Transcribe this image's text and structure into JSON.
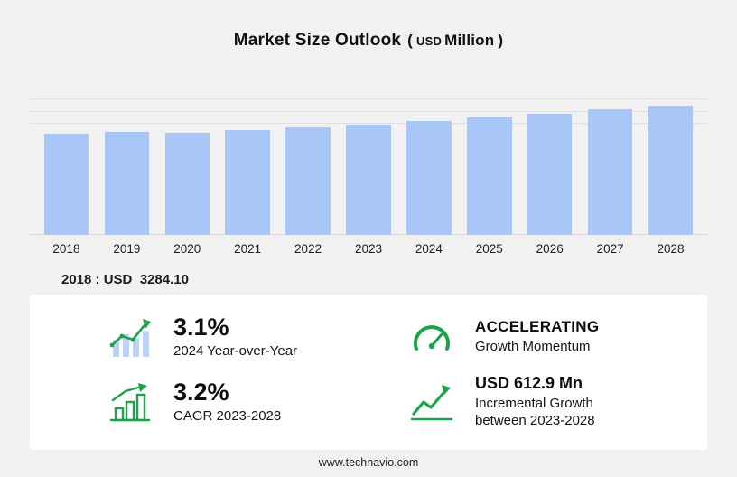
{
  "title": {
    "main": "Market Size Outlook",
    "open": "(",
    "currency": "USD",
    "unit": "Million",
    "close": ")"
  },
  "chart_data": {
    "type": "bar",
    "title": "Market Size Outlook (USD Million)",
    "categories": [
      "2018",
      "2019",
      "2020",
      "2021",
      "2022",
      "2023",
      "2024",
      "2025",
      "2026",
      "2027",
      "2028"
    ],
    "values": [
      3284.1,
      3352,
      3318,
      3390,
      3480,
      3590.9,
      3702.2,
      3820,
      3943,
      4070,
      4203.8
    ],
    "xlabel": "",
    "ylabel": "",
    "ylim": [
      0,
      4400
    ],
    "grid": true,
    "grid_values": [
      3600,
      4000,
      4400
    ],
    "bar_color": "#A8C7F8",
    "legend": "none"
  },
  "annotation": {
    "base_year_value": "2018 : USD  3284.10"
  },
  "stats": {
    "yoy": {
      "icon": "bar-chart-trend-icon",
      "value": "3.1%",
      "label": "2024 Year-over-Year"
    },
    "momentum": {
      "icon": "gauge-icon",
      "value": "ACCELERATING",
      "label": "Growth Momentum"
    },
    "cagr": {
      "icon": "growth-bars-icon",
      "value": "3.2%",
      "label": "CAGR 2023-2028"
    },
    "incremental": {
      "icon": "growth-arrow-icon",
      "value": "USD 612.9 Mn",
      "label_line1": "Incremental Growth",
      "label_line2": "between 2023-2028"
    }
  },
  "footer": {
    "url": "www.technavio.com"
  },
  "colors": {
    "background": "#F1F1F2",
    "panel": "#FFFFFF",
    "bar": "#A8C7F8",
    "accent_green": "#1CA24B",
    "text": "#111111"
  }
}
